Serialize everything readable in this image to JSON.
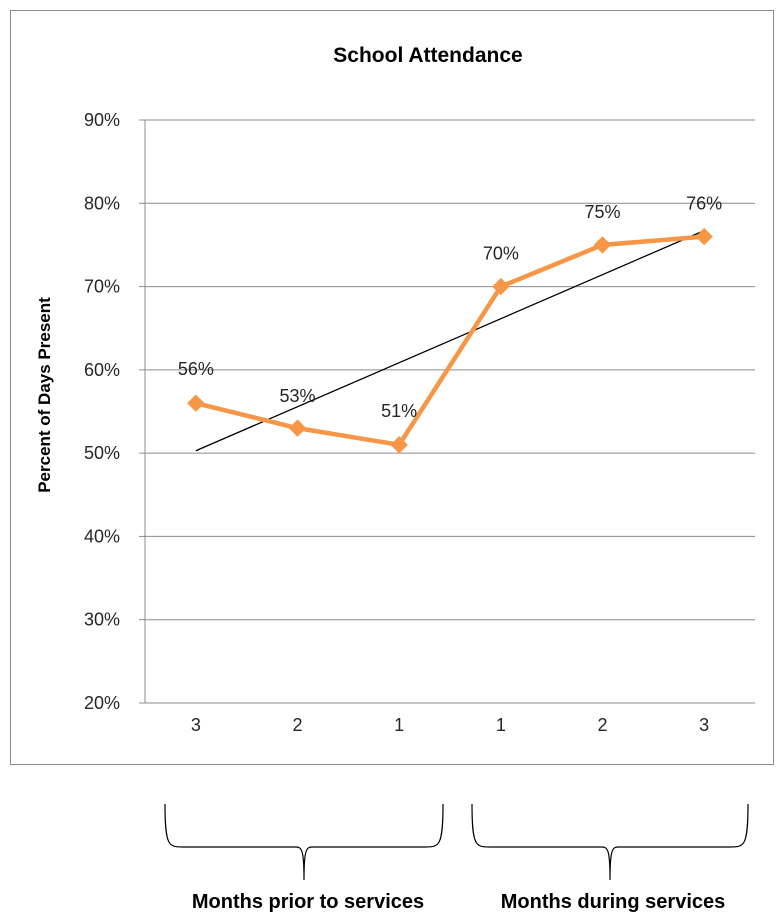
{
  "chart_data": {
    "type": "line",
    "title": "School Attendance",
    "xlabel": "",
    "ylabel": "Percent of Days Present",
    "categories": [
      "3",
      "2",
      "1",
      "1",
      "2",
      "3"
    ],
    "series": [
      {
        "values": [
          56,
          53,
          51,
          70,
          75,
          76
        ],
        "data_labels": [
          "56%",
          "53%",
          "51%",
          "70%",
          "75%",
          "76%"
        ],
        "color": "#f79646",
        "marker": "diamond"
      }
    ],
    "trendline": {
      "type": "linear",
      "color": "#000000"
    },
    "ylim": [
      20,
      90
    ],
    "yticks": [
      20,
      30,
      40,
      50,
      60,
      70,
      80,
      90
    ],
    "ytick_labels": [
      "20%",
      "30%",
      "40%",
      "50%",
      "60%",
      "70%",
      "80%",
      "90%"
    ],
    "grid": true,
    "legend": "none"
  },
  "groups": [
    {
      "label": "Months prior to services",
      "categories": [
        0,
        1,
        2
      ]
    },
    {
      "label": "Months during services",
      "categories": [
        3,
        4,
        5
      ]
    }
  ]
}
